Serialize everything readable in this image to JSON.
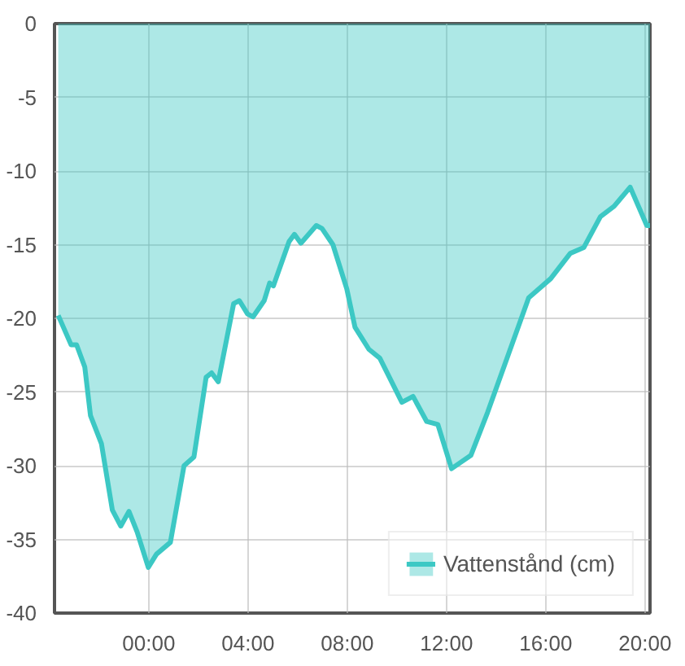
{
  "chart_data": {
    "type": "area",
    "x": [
      -3.65,
      -3.13,
      -2.91,
      -2.58,
      -2.35,
      -1.91,
      -1.47,
      -1.13,
      -0.8,
      -0.47,
      -0.02,
      0.31,
      0.87,
      1.42,
      1.82,
      2.31,
      2.53,
      2.8,
      3.42,
      3.65,
      3.98,
      4.2,
      4.65,
      4.87,
      5.02,
      5.65,
      5.87,
      6.13,
      6.75,
      6.98,
      7.42,
      7.98,
      8.31,
      8.87,
      9.31,
      10.2,
      10.65,
      11.2,
      11.65,
      12.2,
      12.98,
      13.65,
      14.31,
      15.31,
      16.2,
      16.98,
      17.53,
      18.2,
      18.75,
      19.4,
      20.07,
      20.2
    ],
    "series": [
      {
        "name": "Vattenstånd (cm)",
        "color": "#3cc8c4",
        "values": [
          -19.8,
          -21.8,
          -21.8,
          -23.3,
          -26.6,
          -28.5,
          -33.0,
          -34.1,
          -33.1,
          -34.5,
          -36.9,
          -36.0,
          -35.2,
          -30.0,
          -29.4,
          -24.0,
          -23.7,
          -24.3,
          -19.0,
          -18.8,
          -19.7,
          -19.9,
          -18.8,
          -17.6,
          -17.8,
          -14.8,
          -14.3,
          -14.9,
          -13.7,
          -13.9,
          -15.0,
          -18.0,
          -20.6,
          -22.1,
          -22.7,
          -25.7,
          -25.3,
          -27.0,
          -27.2,
          -30.2,
          -29.3,
          -26.4,
          -23.3,
          -18.6,
          -17.3,
          -15.6,
          -15.2,
          -13.1,
          -12.4,
          -11.1,
          -13.7,
          -13.7
        ]
      }
    ],
    "xlim": [
      -3.8,
      20.2
    ],
    "xticks": [
      {
        "value": 0,
        "label": "00:00"
      },
      {
        "value": 4,
        "label": "04:00"
      },
      {
        "value": 8,
        "label": "08:00"
      },
      {
        "value": 12,
        "label": "12:00"
      },
      {
        "value": 16,
        "label": "16:00"
      },
      {
        "value": 20,
        "label": "20:00"
      }
    ],
    "ylim": [
      -40,
      0
    ],
    "yticks": [
      -40,
      -35,
      -30,
      -25,
      -20,
      -15,
      -10,
      -5,
      0
    ],
    "grid": true,
    "legend": "bottom right"
  }
}
